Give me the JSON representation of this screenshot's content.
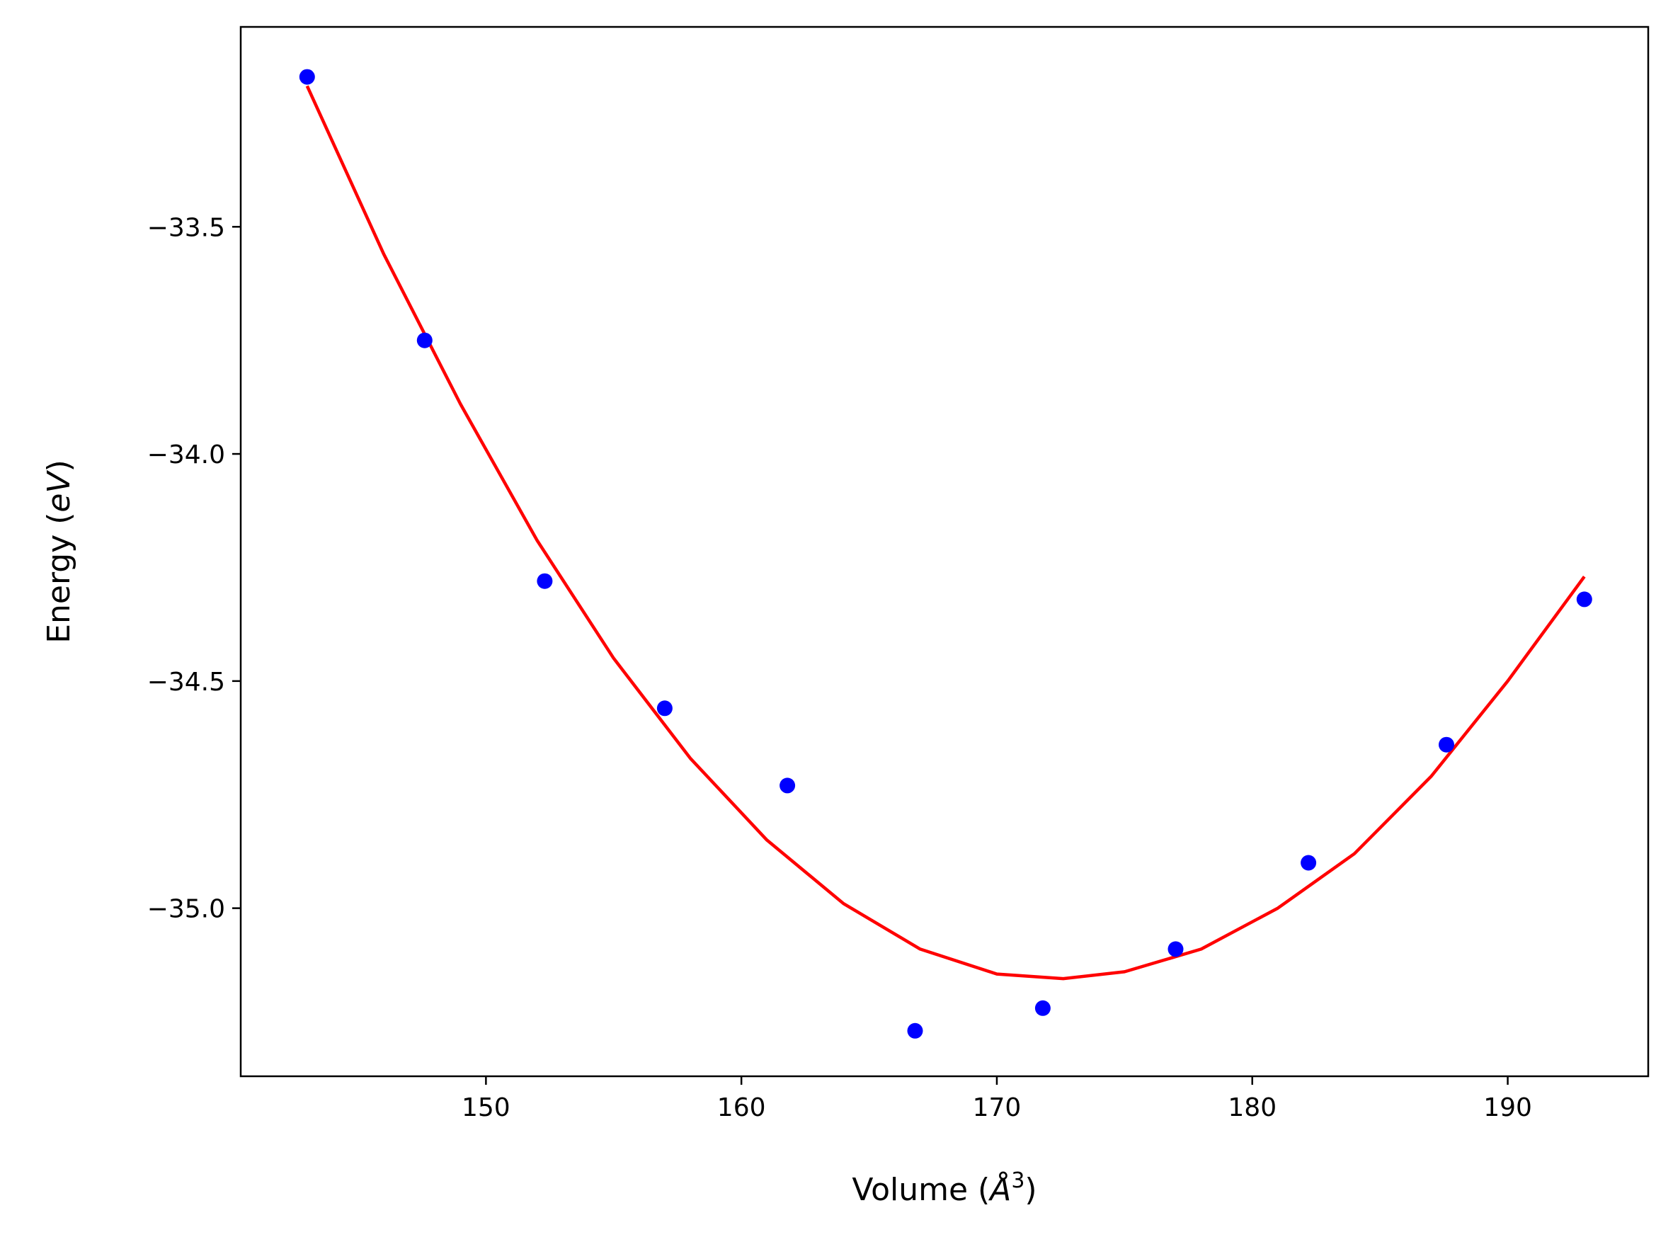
{
  "chart_data": {
    "type": "scatter",
    "title": "",
    "xlabel": "Volume (",
    "xlabel_symbol": "Å",
    "xlabel_exponent": "3",
    "xlabel_close": ")",
    "ylabel": "Energy (",
    "ylabel_symbol": "eV",
    "ylabel_close": ")",
    "xlim": [
      140.4,
      195.5
    ],
    "ylim": [
      -35.37,
      -33.06
    ],
    "x_ticks": [
      150,
      160,
      170,
      180,
      190
    ],
    "x_tick_labels": [
      "150",
      "160",
      "170",
      "180",
      "190"
    ],
    "y_ticks": [
      -33.5,
      -34.0,
      -34.5,
      -35.0
    ],
    "y_tick_labels": [
      "−33.5",
      "−34.0",
      "−34.5",
      "−35.0"
    ],
    "grid": false,
    "legend": "none",
    "series": [
      {
        "kind": "points",
        "color": "#0000ff",
        "points": [
          [
            143.0,
            -33.17
          ],
          [
            147.6,
            -33.75
          ],
          [
            152.3,
            -34.28
          ],
          [
            157.0,
            -34.56
          ],
          [
            161.8,
            -34.73
          ],
          [
            166.8,
            -35.27
          ],
          [
            171.8,
            -35.22
          ],
          [
            177.0,
            -35.09
          ],
          [
            182.2,
            -34.9
          ],
          [
            187.6,
            -34.64
          ],
          [
            193.0,
            -34.32
          ]
        ]
      },
      {
        "kind": "fit",
        "color": "#ff0000",
        "x_start": 143.0,
        "x_end": 193.0,
        "vertex_x": 172.6,
        "vertex_y": -35.155,
        "points": [
          [
            143.0,
            -33.19
          ],
          [
            146.0,
            -33.56
          ],
          [
            149.0,
            -33.89
          ],
          [
            152.0,
            -34.19
          ],
          [
            155.0,
            -34.45
          ],
          [
            158.0,
            -34.67
          ],
          [
            161.0,
            -34.85
          ],
          [
            164.0,
            -34.99
          ],
          [
            167.0,
            -35.09
          ],
          [
            170.0,
            -35.145
          ],
          [
            172.6,
            -35.155
          ],
          [
            175.0,
            -35.14
          ],
          [
            178.0,
            -35.09
          ],
          [
            181.0,
            -35.0
          ],
          [
            184.0,
            -34.88
          ],
          [
            187.0,
            -34.71
          ],
          [
            190.0,
            -34.5
          ],
          [
            193.0,
            -34.27
          ]
        ]
      }
    ]
  }
}
